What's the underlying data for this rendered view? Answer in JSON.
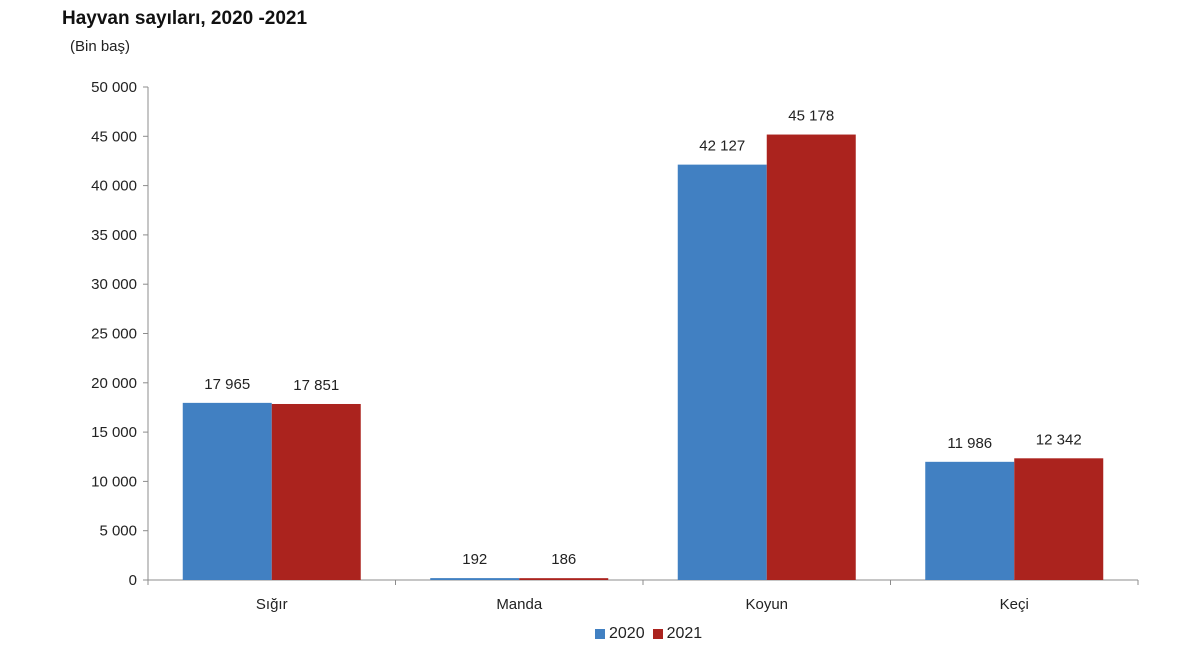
{
  "chart_data": {
    "type": "bar",
    "title": "Hayvan sayıları, 2020 -2021",
    "unit_label": "(Bin baş)",
    "categories": [
      "Sığır",
      "Manda",
      "Koyun",
      "Keçi"
    ],
    "series": [
      {
        "name": "2020",
        "color": "#4180c2",
        "values": [
          17965,
          192,
          42127,
          11986
        ],
        "labels": [
          "17 965",
          "192",
          "42 127",
          "11 986"
        ]
      },
      {
        "name": "2021",
        "color": "#ab231e",
        "values": [
          17851,
          186,
          45178,
          12342
        ],
        "labels": [
          "17 851",
          "186",
          "45 178",
          "12 342"
        ]
      }
    ],
    "ylim": [
      0,
      50000
    ],
    "yticks": [
      0,
      5000,
      10000,
      15000,
      20000,
      25000,
      30000,
      35000,
      40000,
      45000,
      50000
    ],
    "ytick_labels": [
      "0",
      "5 000",
      "10 000",
      "15 000",
      "20 000",
      "25 000",
      "30 000",
      "35 000",
      "40 000",
      "45 000",
      "50 000"
    ],
    "grid": false,
    "legend_position": "bottom-center",
    "xlabel": "",
    "ylabel": ""
  }
}
